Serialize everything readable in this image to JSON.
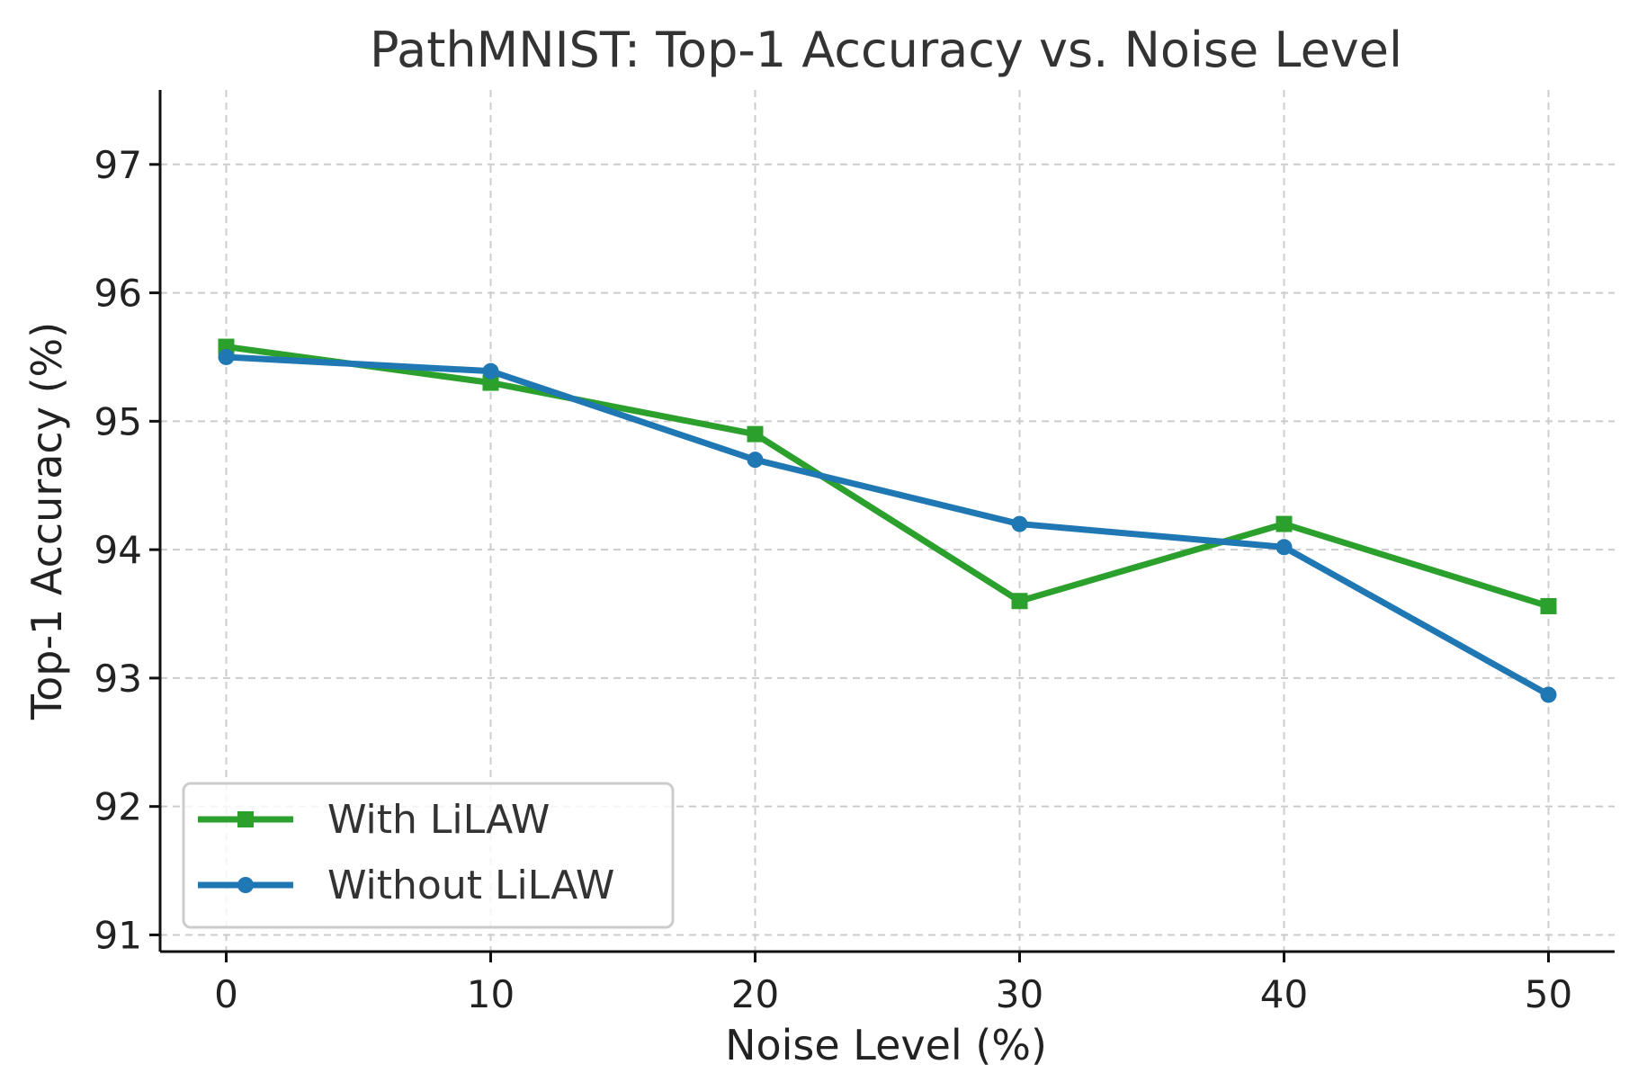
{
  "chart_data": {
    "type": "line",
    "title": "PathMNIST: Top-1 Accuracy vs. Noise Level",
    "xlabel": "Noise Level (%)",
    "ylabel": "Top-1 Accuracy (%)",
    "x": [
      0,
      10,
      20,
      30,
      40,
      50
    ],
    "xlim": [
      -2.5,
      52.5
    ],
    "ylim": [
      90.87,
      97.58
    ],
    "xticks": [
      0,
      10,
      20,
      30,
      40,
      50
    ],
    "yticks": [
      91,
      92,
      93,
      94,
      95,
      96,
      97
    ],
    "grid": true,
    "legend_position": "lower-left",
    "series": [
      {
        "name": "With LiLAW",
        "color": "#2ca02c",
        "marker": "square",
        "values": [
          95.58,
          95.3,
          94.9,
          93.6,
          94.2,
          93.56
        ]
      },
      {
        "name": "Without LiLAW",
        "color": "#1f77b4",
        "marker": "circle",
        "values": [
          95.5,
          95.39,
          94.7,
          94.2,
          94.02,
          92.87
        ]
      }
    ]
  }
}
